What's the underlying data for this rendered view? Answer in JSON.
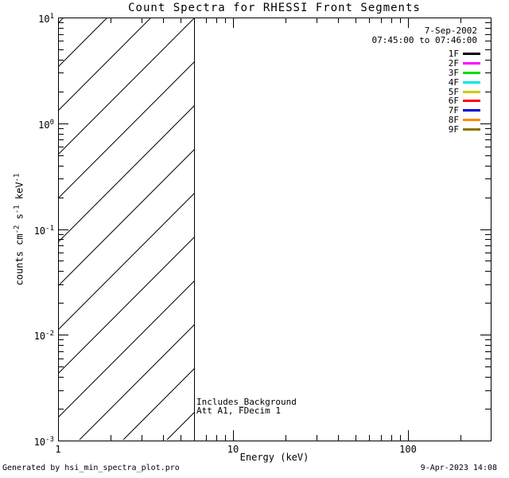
{
  "title": "Count Spectra for RHESSI Front Segments",
  "header": {
    "date": "7-Sep-2002",
    "time_range": "07:45:00 to 07:46:00"
  },
  "legend": {
    "position": "top-right",
    "entries": [
      {
        "label": "1F",
        "color": "#000000"
      },
      {
        "label": "2F",
        "color": "#ff00ff"
      },
      {
        "label": "3F",
        "color": "#00dd00"
      },
      {
        "label": "4F",
        "color": "#00e6e6"
      },
      {
        "label": "5F",
        "color": "#cccc00"
      },
      {
        "label": "6F",
        "color": "#ff0000"
      },
      {
        "label": "7F",
        "color": "#0000dd"
      },
      {
        "label": "8F",
        "color": "#ff8800"
      },
      {
        "label": "9F",
        "color": "#8b7500"
      }
    ]
  },
  "annotations": {
    "line1": "Includes_Background",
    "line2": "Att A1, FDecim 1"
  },
  "footer": {
    "left": "Generated by hsi_min_spectra_plot.pro",
    "right": "9-Apr-2023 14:08"
  },
  "chart_data": {
    "type": "line",
    "title": "Count Spectra for RHESSI Front Segments",
    "xlabel": "Energy (keV)",
    "ylabel": "counts cm^-2 s^-1 keV^-1",
    "ylabel_parts": [
      {
        "text": "counts cm"
      },
      {
        "sup": "-2"
      },
      {
        "text": " s"
      },
      {
        "sup": "-1"
      },
      {
        "text": " keV"
      },
      {
        "sup": "-1"
      }
    ],
    "xscale": "log",
    "yscale": "log",
    "xlim": [
      1,
      300
    ],
    "ylim": [
      0.001,
      10
    ],
    "grid": false,
    "x_major_ticks": [
      1,
      10,
      100
    ],
    "x_tick_labels": [
      "1",
      "10",
      "100"
    ],
    "y_tick_base": "10",
    "y_tick_exponents": [
      "1",
      "0",
      "-1",
      "-2",
      "-3"
    ],
    "legend_position": "top-right",
    "series": [
      {
        "name": "1F",
        "color": "#000000",
        "x": [],
        "y": []
      },
      {
        "name": "2F",
        "color": "#ff00ff",
        "x": [],
        "y": []
      },
      {
        "name": "3F",
        "color": "#00dd00",
        "x": [],
        "y": []
      },
      {
        "name": "4F",
        "color": "#00e6e6",
        "x": [],
        "y": []
      },
      {
        "name": "5F",
        "color": "#cccc00",
        "x": [],
        "y": []
      },
      {
        "name": "6F",
        "color": "#ff0000",
        "x": [],
        "y": []
      },
      {
        "name": "7F",
        "color": "#0000dd",
        "x": [],
        "y": []
      },
      {
        "name": "8F",
        "color": "#ff8800",
        "x": [],
        "y": []
      },
      {
        "name": "9F",
        "color": "#8b7500",
        "x": [],
        "y": []
      }
    ],
    "excluded_region": {
      "x_range": [
        1,
        6
      ],
      "style": "diagonal-hatch"
    }
  }
}
